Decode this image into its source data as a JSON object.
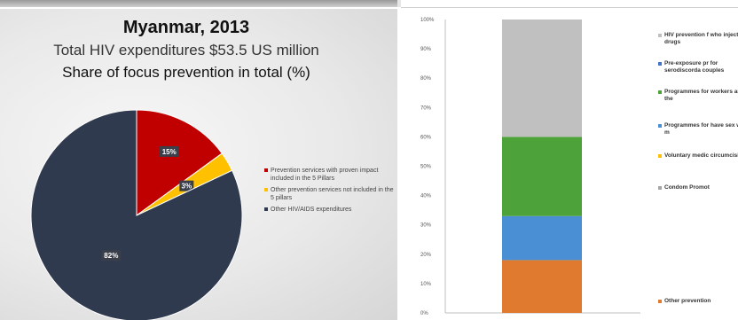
{
  "chart_data": [
    {
      "type": "pie",
      "title": "Myanmar, 2013",
      "subtitle": "Total HIV expenditures $53.5 US million",
      "subtitle2": "Share of focus prevention in total (%)",
      "slices": [
        {
          "label": "Prevention services with proven impact included in the 5 Pillars",
          "value": 15,
          "data_label": "15%",
          "color": "#c00000"
        },
        {
          "label": "Other prevention services not included in the 5 pillars",
          "value": 3,
          "data_label": "3%",
          "color": "#ffc000"
        },
        {
          "label": "Other HIV/AIDS expenditures",
          "value": 82,
          "data_label": "82%",
          "color": "#2f3a4f"
        }
      ],
      "legend_placement": "right"
    },
    {
      "type": "bar",
      "stacked": true,
      "categories": [
        ""
      ],
      "ylim": [
        0,
        100
      ],
      "yticks": [
        "0%",
        "10%",
        "20%",
        "30%",
        "40%",
        "50%",
        "60%",
        "70%",
        "80%",
        "90%",
        "100%"
      ],
      "grid": false,
      "legend_placement": "right",
      "series": [
        {
          "name": "Other prevention",
          "values": [
            18
          ],
          "color": "#e07a2e"
        },
        {
          "name": "Condom Promot",
          "values": [
            0
          ],
          "color": "#a5a5a5"
        },
        {
          "name": "Voluntary medic circumcision",
          "values": [
            0
          ],
          "color": "#ffc000"
        },
        {
          "name": "Programmes for have sex with m",
          "values": [
            15
          ],
          "color": "#4a8fd4"
        },
        {
          "name": "Programmes for workers and the",
          "values": [
            27
          ],
          "color": "#4ea23a"
        },
        {
          "name": "Pre-exposure pr for serodiscorda couples",
          "values": [
            0
          ],
          "color": "#4472c4"
        },
        {
          "name": "HIV prevention f who inject drugs",
          "values": [
            40
          ],
          "color": "#c0c0c0"
        }
      ]
    }
  ]
}
